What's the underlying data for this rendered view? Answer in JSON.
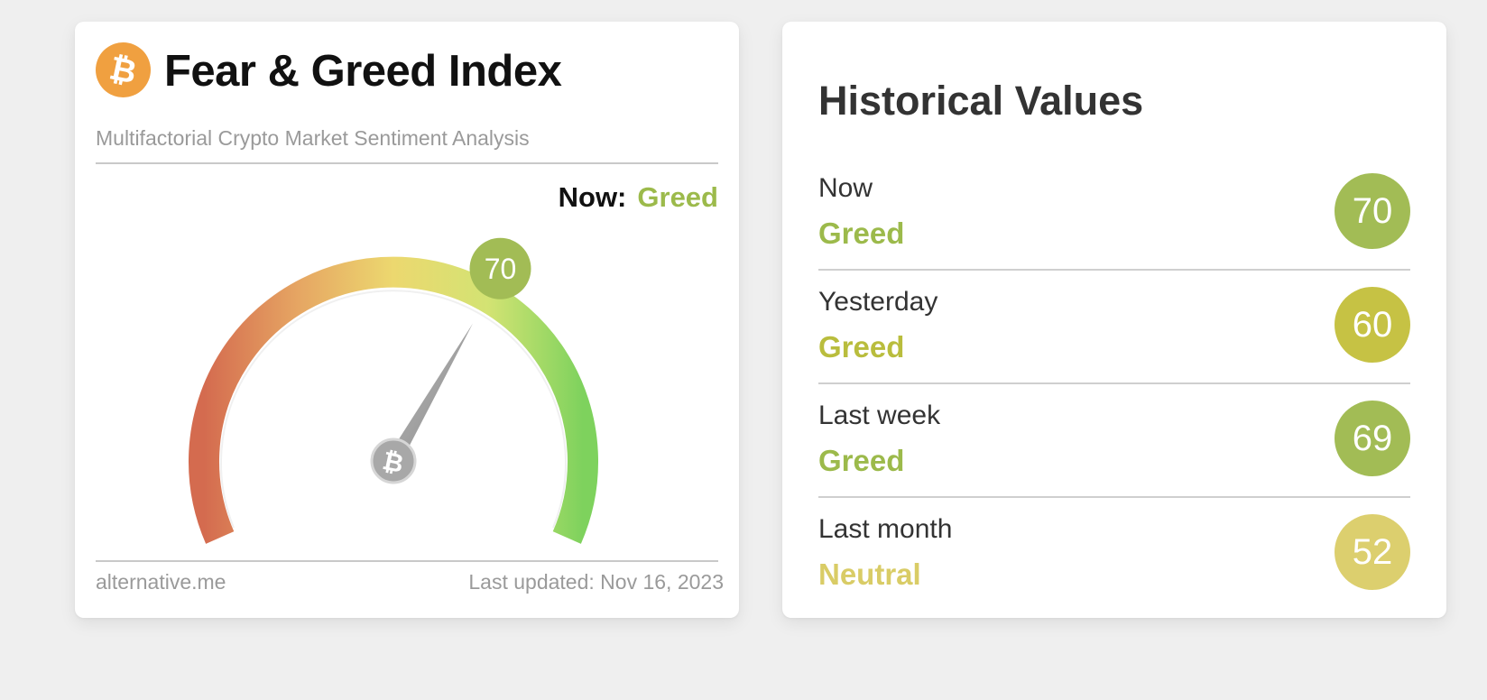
{
  "fear_greed": {
    "title": "Fear & Greed Index",
    "subtitle": "Multifactorial Crypto Market Sentiment Analysis",
    "now_label": "Now:",
    "now_classification": "Greed",
    "value": 70,
    "value_text": "70",
    "footer_source": "alternative.me",
    "last_updated": "Last updated: Nov 16, 2023",
    "logo_icon": "bitcoin-icon",
    "colors": {
      "greed": "#9cba4b",
      "needle": "#9a9a9a",
      "logo": "#f0a040"
    }
  },
  "historical": {
    "title": "Historical Values",
    "rows": [
      {
        "period": "Now",
        "classification": "Greed",
        "value": "70",
        "class_color": "#9cba4b",
        "bubble_color": "#a2bc55"
      },
      {
        "period": "Yesterday",
        "classification": "Greed",
        "value": "60",
        "class_color": "#b9bd3d",
        "bubble_color": "#c6c244"
      },
      {
        "period": "Last week",
        "classification": "Greed",
        "value": "69",
        "class_color": "#9cba4b",
        "bubble_color": "#a2bc55"
      },
      {
        "period": "Last month",
        "classification": "Neutral",
        "value": "52",
        "class_color": "#d9cc66",
        "bubble_color": "#dccf6e"
      }
    ]
  }
}
